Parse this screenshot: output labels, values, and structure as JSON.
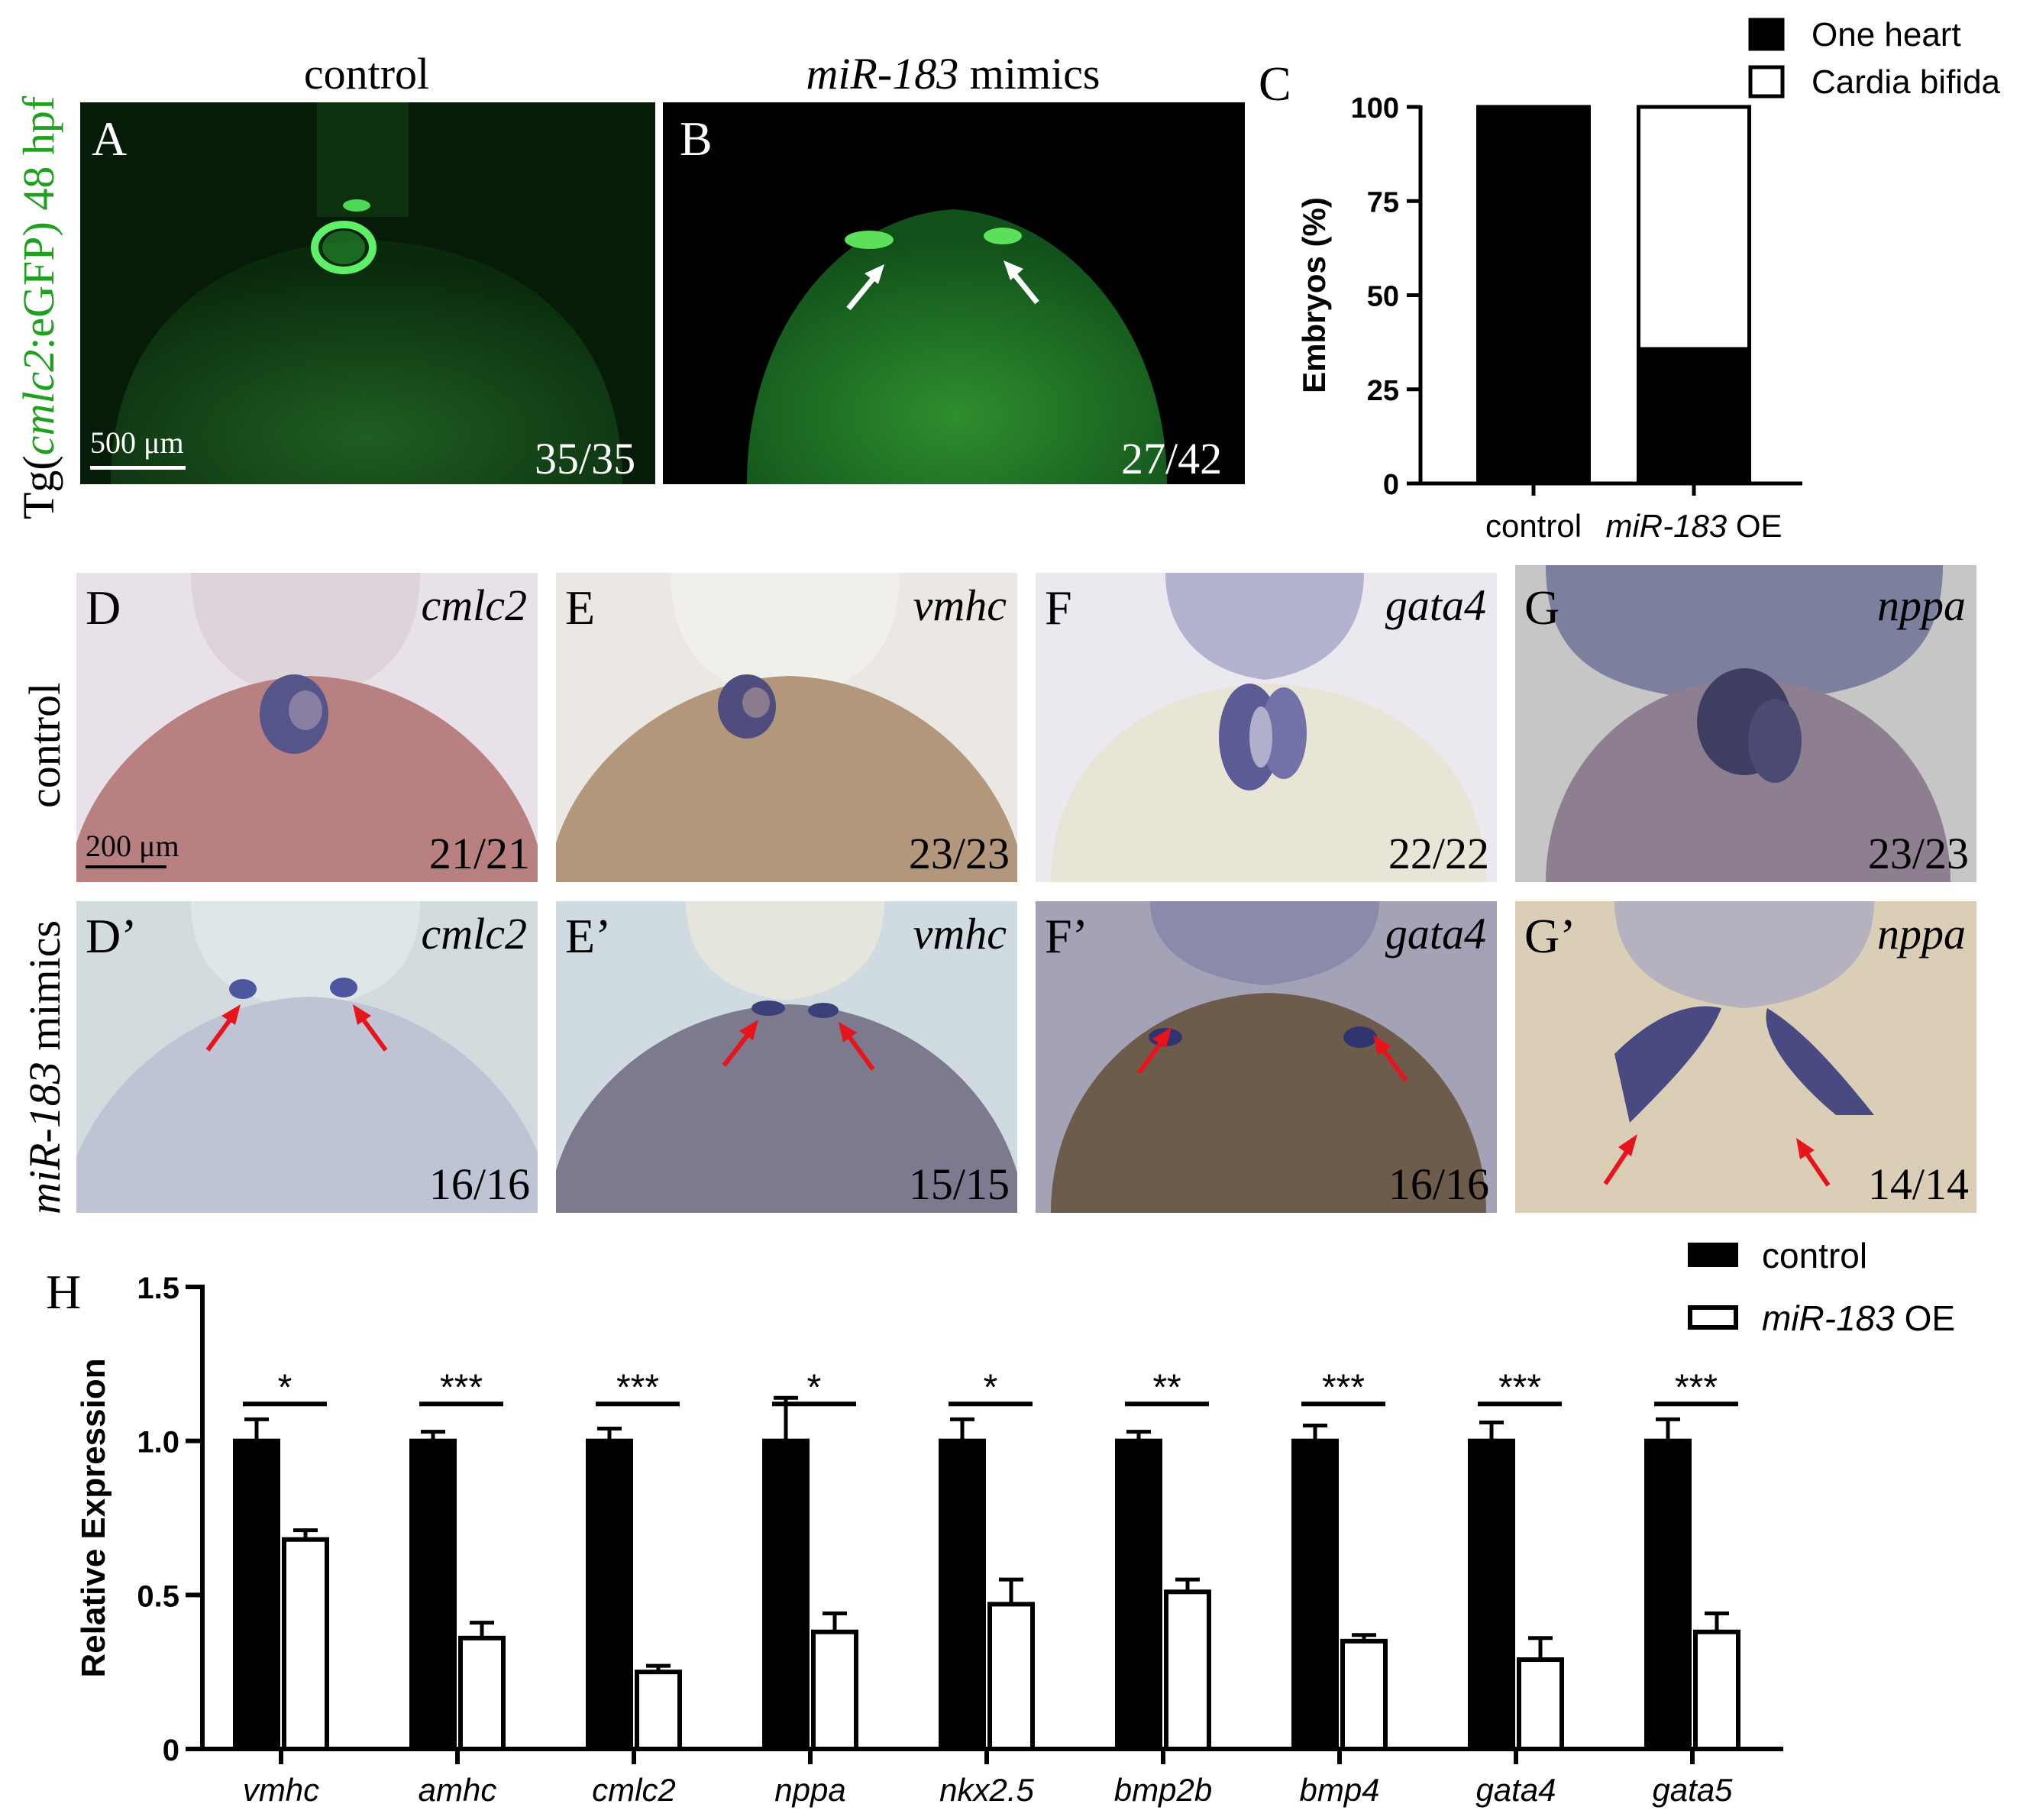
{
  "top": {
    "vertical_label_prefix": "Tg(",
    "vertical_label_gene": "cmlc2",
    "vertical_label_suffix": ":eGFP)  48 hpf",
    "col_titles": {
      "control": "control",
      "mimics_italic": "miR-183",
      "mimics_rest": " mimics"
    },
    "panel_A": {
      "label": "A",
      "count": "35/35",
      "scale": "500 μm"
    },
    "panel_B": {
      "label": "B",
      "count": "27/42"
    }
  },
  "panel_C": {
    "label": "C"
  },
  "ish": {
    "row_labels": {
      "control": "control",
      "mimics_italic": "miR-183",
      "mimics_rest": " mimics"
    },
    "scale": "200 μm",
    "control": [
      {
        "label": "D",
        "gene": "cmlc2",
        "count": "21/21"
      },
      {
        "label": "E",
        "gene": "vmhc",
        "count": "23/23"
      },
      {
        "label": "F",
        "gene": "gata4",
        "count": "22/22"
      },
      {
        "label": "G",
        "gene": "nppa",
        "count": "23/23"
      }
    ],
    "mimics": [
      {
        "label": "D’",
        "gene": "cmlc2",
        "count": "16/16"
      },
      {
        "label": "E’",
        "gene": "vmhc",
        "count": "15/15"
      },
      {
        "label": "F’",
        "gene": "gata4",
        "count": "16/16"
      },
      {
        "label": "G’",
        "gene": "nppa",
        "count": "14/14"
      }
    ]
  },
  "panel_H": {
    "label": "H"
  },
  "colors": {
    "gfp": "#1fa01f",
    "arrow_red": "#e8141c",
    "black": "#000000"
  },
  "chart_data": [
    {
      "type": "bar",
      "stacked": true,
      "categories": [
        "control",
        "miR-183 OE"
      ],
      "category_parts": [
        {
          "italic": "",
          "rest": "control"
        },
        {
          "italic": "miR-183",
          "rest": " OE"
        }
      ],
      "series": [
        {
          "name": "One heart",
          "values": [
            100,
            35.7
          ]
        },
        {
          "name": "Cardia bifida",
          "values": [
            0,
            64.3
          ]
        }
      ],
      "ylabel": "Embryos (%)",
      "ylim": [
        0,
        100
      ],
      "yticks": [
        "0",
        "25",
        "50",
        "75",
        "100"
      ],
      "legend_placement": "top-right"
    },
    {
      "type": "bar",
      "categories": [
        "vmhc",
        "amhc",
        "cmlc2",
        "nppa",
        "nkx2.5",
        "bmp2b",
        "bmp4",
        "gata4",
        "gata5"
      ],
      "series": [
        {
          "name": "control",
          "values": [
            1.0,
            1.0,
            1.0,
            1.0,
            1.0,
            1.0,
            1.0,
            1.0,
            1.0
          ],
          "errors": [
            0.07,
            0.03,
            0.04,
            0.14,
            0.07,
            0.03,
            0.05,
            0.06,
            0.07
          ]
        },
        {
          "name": "miR-183 OE",
          "name_parts": {
            "italic": "miR-183",
            "rest": "  OE"
          },
          "values": [
            0.68,
            0.36,
            0.25,
            0.38,
            0.47,
            0.51,
            0.35,
            0.29,
            0.38
          ],
          "errors": [
            0.03,
            0.05,
            0.02,
            0.06,
            0.08,
            0.04,
            0.02,
            0.07,
            0.06
          ]
        }
      ],
      "significance": [
        "*",
        "***",
        "***",
        "*",
        "*",
        "**",
        "***",
        "***",
        "***"
      ],
      "ylabel": "Relative Expression",
      "ylim": [
        0,
        1.5
      ],
      "yticks": [
        "0",
        "0.5",
        "1.0",
        "1.5"
      ],
      "legend_placement": "top-right"
    }
  ]
}
